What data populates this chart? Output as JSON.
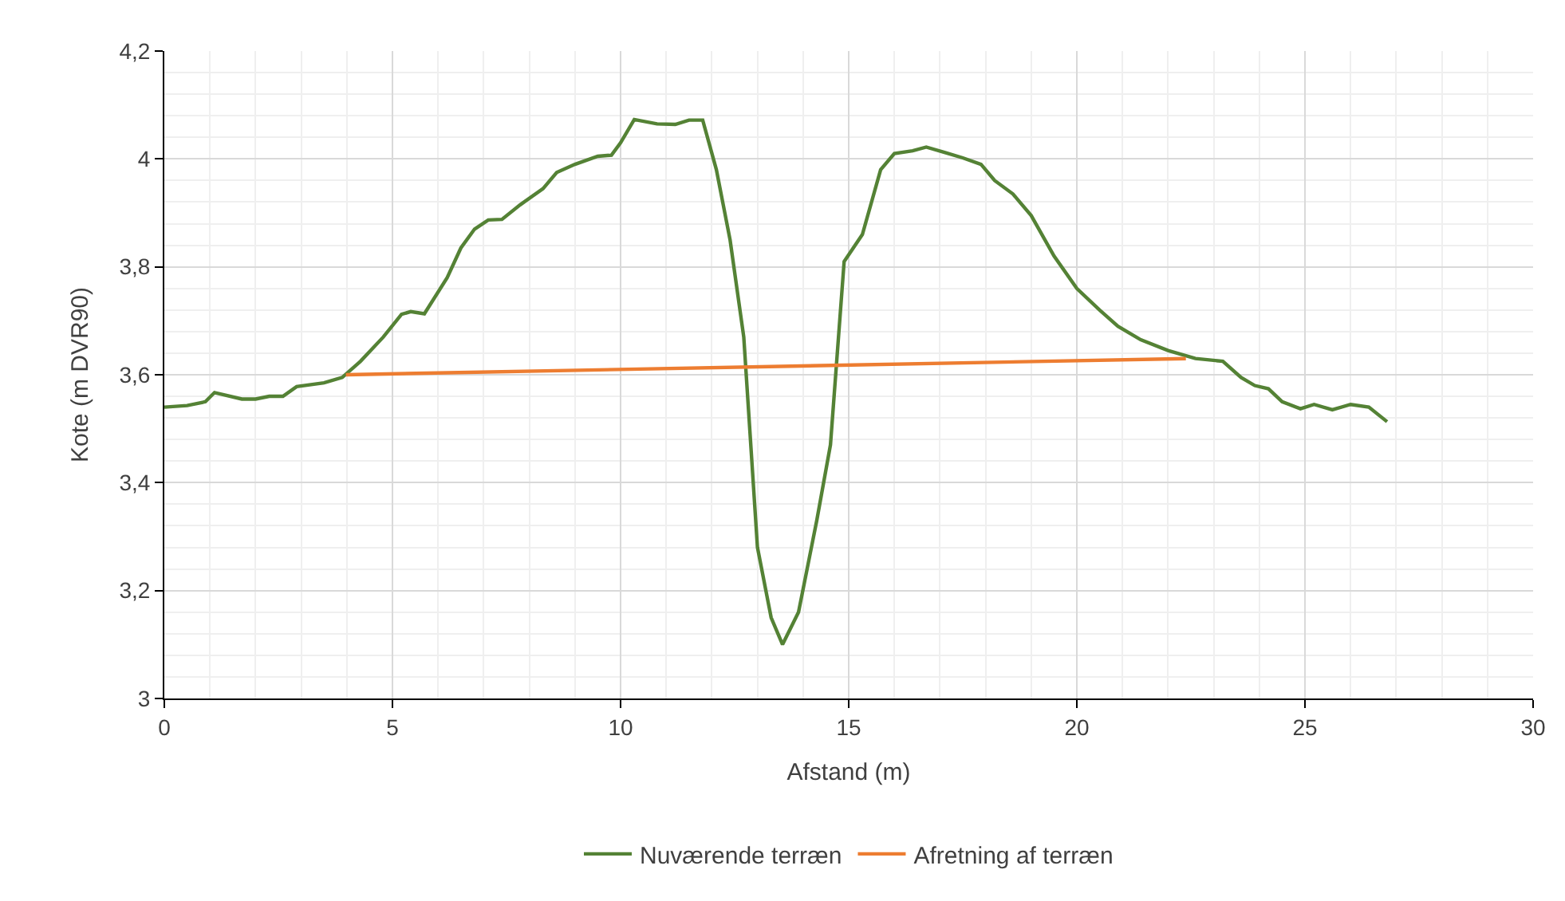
{
  "chart_data": {
    "type": "line",
    "xlabel": "Afstand (m)",
    "ylabel": "Kote (m DVR90)",
    "xlim": [
      0,
      30
    ],
    "xticks": [
      0,
      5,
      10,
      15,
      20,
      25,
      30
    ],
    "ylim": [
      3,
      4.2
    ],
    "yticks": [
      {
        "value": 3,
        "label": "3"
      },
      {
        "value": 3.2,
        "label": "3,2"
      },
      {
        "value": 3.4,
        "label": "3,4"
      },
      {
        "value": 3.6,
        "label": "3,6"
      },
      {
        "value": 3.8,
        "label": "3,8"
      },
      {
        "value": 4,
        "label": "4"
      },
      {
        "value": 4.2,
        "label": "4,2"
      }
    ],
    "grid": true,
    "legend": "bottom",
    "marker": "none",
    "line_style": "solid",
    "series": [
      {
        "name": "Nuværende terræn",
        "color": "#548235",
        "x": [
          0,
          0.5,
          0.9,
          1.1,
          1.7,
          2.0,
          2.3,
          2.6,
          2.9,
          3.5,
          3.9,
          4.3,
          4.8,
          5.2,
          5.4,
          5.7,
          6.2,
          6.5,
          6.8,
          7.1,
          7.4,
          7.8,
          8.3,
          8.6,
          9.0,
          9.5,
          9.8,
          10.0,
          10.3,
          10.8,
          11.2,
          11.5,
          11.8,
          12.1,
          12.4,
          12.7,
          13.0,
          13.3,
          13.55,
          13.9,
          14.3,
          14.6,
          14.9,
          15.3,
          15.7,
          16.0,
          16.4,
          16.7,
          17.1,
          17.5,
          17.9,
          18.2,
          18.6,
          19.0,
          19.5,
          20.0,
          20.5,
          20.9,
          21.4,
          22.0,
          22.6,
          23.2,
          23.6,
          23.9,
          24.2,
          24.5,
          24.9,
          25.2,
          25.6,
          26.0,
          26.4,
          26.8
        ],
        "values": [
          3.54,
          3.543,
          3.55,
          3.567,
          3.555,
          3.555,
          3.56,
          3.56,
          3.578,
          3.585,
          3.595,
          3.625,
          3.67,
          3.712,
          3.717,
          3.713,
          3.78,
          3.835,
          3.87,
          3.887,
          3.888,
          3.915,
          3.945,
          3.975,
          3.99,
          4.005,
          4.007,
          4.03,
          4.073,
          4.065,
          4.064,
          4.072,
          4.072,
          3.98,
          3.85,
          3.67,
          3.28,
          3.15,
          3.1,
          3.16,
          3.33,
          3.47,
          3.81,
          3.86,
          3.98,
          4.01,
          4.015,
          4.022,
          4.012,
          4.002,
          3.99,
          3.96,
          3.935,
          3.895,
          3.82,
          3.76,
          3.72,
          3.69,
          3.665,
          3.645,
          3.63,
          3.625,
          3.595,
          3.58,
          3.574,
          3.55,
          3.537,
          3.545,
          3.535,
          3.545,
          3.54,
          3.513
        ]
      },
      {
        "name": "Afretning af terræn",
        "color": "#ed7d31",
        "x": [
          3.98,
          22.39
        ],
        "values": [
          3.6,
          3.63
        ]
      }
    ]
  }
}
